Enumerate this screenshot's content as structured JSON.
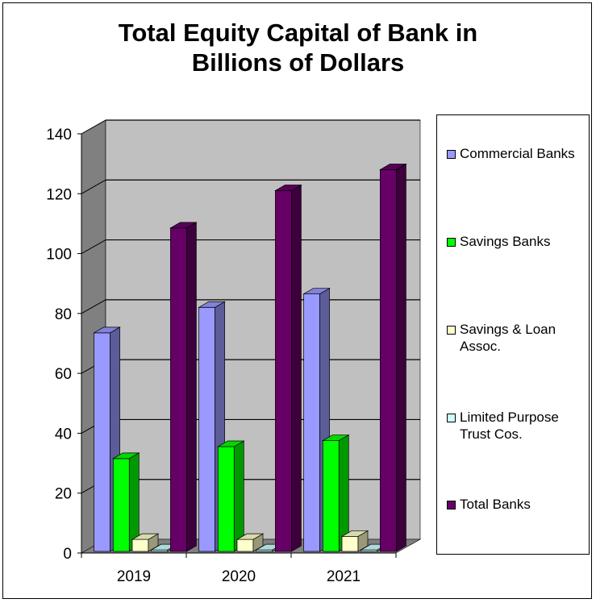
{
  "chart_data": {
    "type": "bar",
    "title_lines": [
      "Total Equity Capital of Bank in",
      "Billions of Dollars"
    ],
    "categories": [
      "2019",
      "2020",
      "2021"
    ],
    "series": [
      {
        "name": "Commercial Banks",
        "values": [
          73,
          81.5,
          86
        ],
        "color": "#9999ff"
      },
      {
        "name": "Savings Banks",
        "values": [
          31,
          35,
          37
        ],
        "color": "#00ff00"
      },
      {
        "name": "Savings & Loan Assoc.",
        "values": [
          4,
          4,
          5
        ],
        "color": "#ffffcc"
      },
      {
        "name": "Limited Purpose Trust Cos.",
        "values": [
          0.5,
          0.5,
          0.5
        ],
        "color": "#ccffff"
      },
      {
        "name": "Total Banks",
        "values": [
          108,
          120.5,
          127.5
        ],
        "color": "#660066"
      }
    ],
    "ylim": [
      0,
      140
    ],
    "yticks": [
      "0",
      "20",
      "40",
      "60",
      "80",
      "100",
      "120",
      "140"
    ],
    "grid": true,
    "style": "3d-clustered-column",
    "legend_position": "right"
  }
}
